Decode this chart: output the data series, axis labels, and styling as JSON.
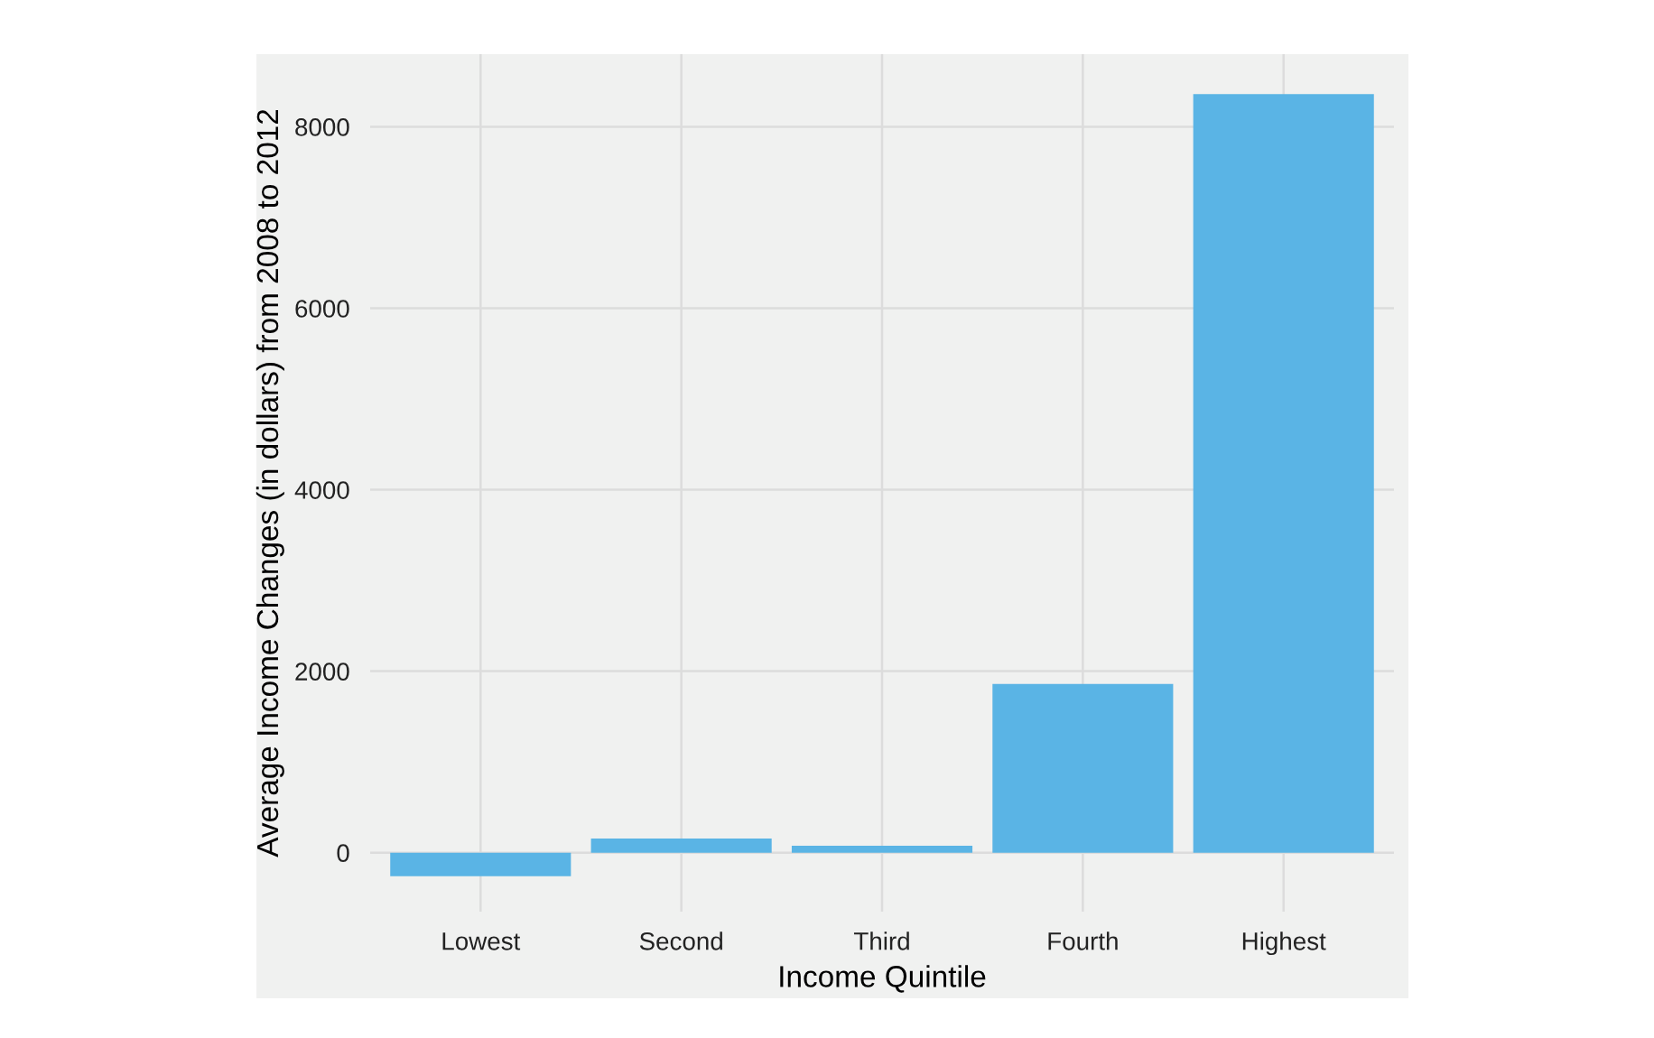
{
  "chart_data": {
    "type": "bar",
    "xlabel": "Income Quintile",
    "ylabel": "Average Income Changes (in dollars) from 2008 to 2012",
    "categories": [
      "Lowest",
      "Second",
      "Third",
      "Fourth",
      "Highest"
    ],
    "values": [
      -260,
      155,
      75,
      1860,
      8360
    ],
    "color": "#5ab4e5",
    "ylim": [
      -650,
      8800
    ],
    "yticks": [
      0,
      2000,
      4000,
      6000,
      8000
    ],
    "grid": true,
    "legend": false
  }
}
